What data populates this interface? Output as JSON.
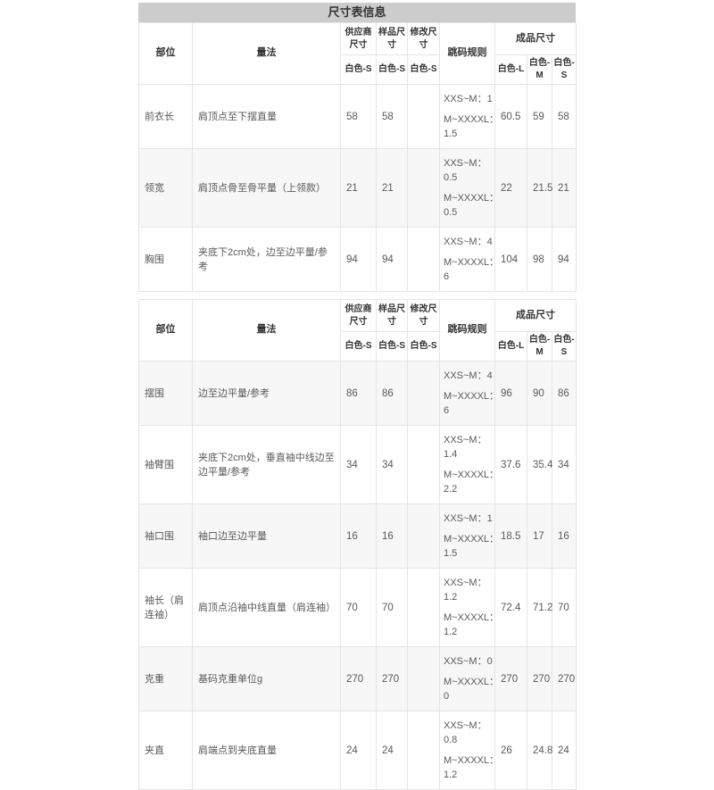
{
  "title": "尺寸表信息",
  "colors": {
    "title_bar_bg": "#cccccc",
    "stripe_bg": "#f7f7f7",
    "border": "#e5e5e5",
    "text": "#595959",
    "header_text": "#333333",
    "page_bg": "#ffffff"
  },
  "header": {
    "part": "部位",
    "method": "量法",
    "supplier": "供应商尺寸",
    "sample": "样品尺寸",
    "modify": "修改尺寸",
    "rule": "跳码规则",
    "finished": "成品尺寸",
    "supplier_sub": "白色-S",
    "sample_sub": "白色-S",
    "modify_sub": "白色-S",
    "finished_sub": [
      "白色-L",
      "白色-M",
      "白色-S"
    ]
  },
  "tables": [
    {
      "rows": [
        {
          "part": "前衣长",
          "method": "肩顶点至下摆直量",
          "supplier": "58",
          "sample": "58",
          "modify": "",
          "rules": [
            "XXS~M：1",
            "M~XXXXL：1.5"
          ],
          "finished": [
            "60.5",
            "59",
            "58"
          ]
        },
        {
          "part": "领宽",
          "method": "肩顶点骨至骨平量（上领款）",
          "supplier": "21",
          "sample": "21",
          "modify": "",
          "rules": [
            "XXS~M：0.5",
            "M~XXXXL：0.5"
          ],
          "finished": [
            "22",
            "21.5",
            "21"
          ]
        },
        {
          "part": "胸围",
          "method": "夹底下2cm处，边至边平量/参考",
          "supplier": "94",
          "sample": "94",
          "modify": "",
          "rules": [
            "XXS~M：4",
            "M~XXXXL：6"
          ],
          "finished": [
            "104",
            "98",
            "94"
          ]
        }
      ]
    },
    {
      "rows": [
        {
          "part": "摆围",
          "method": "边至边平量/参考",
          "supplier": "86",
          "sample": "86",
          "modify": "",
          "rules": [
            "XXS~M：4",
            "M~XXXXL：6"
          ],
          "finished": [
            "96",
            "90",
            "86"
          ]
        },
        {
          "part": "袖臂围",
          "method": "夹底下2cm处，垂直袖中线边至边平量/参考",
          "supplier": "34",
          "sample": "34",
          "modify": "",
          "rules": [
            "XXS~M：1.4",
            "M~XXXXL：2.2"
          ],
          "finished": [
            "37.6",
            "35.4",
            "34"
          ]
        },
        {
          "part": "袖口围",
          "method": "袖口边至边平量",
          "supplier": "16",
          "sample": "16",
          "modify": "",
          "rules": [
            "XXS~M：1",
            "M~XXXXL：1.5"
          ],
          "finished": [
            "18.5",
            "17",
            "16"
          ]
        },
        {
          "part": "袖长（肩连袖）",
          "method": "肩顶点沿袖中线直量（肩连袖）",
          "supplier": "70",
          "sample": "70",
          "modify": "",
          "rules": [
            "XXS~M：1.2",
            "M~XXXXL：1.2"
          ],
          "finished": [
            "72.4",
            "71.2",
            "70"
          ]
        },
        {
          "part": "克重",
          "method": "基码克重单位g",
          "supplier": "270",
          "sample": "270",
          "modify": "",
          "rules": [
            "XXS~M：0",
            "M~XXXXL：0"
          ],
          "finished": [
            "270",
            "270",
            "270"
          ]
        },
        {
          "part": "夹直",
          "method": "肩端点到夹底直量",
          "supplier": "24",
          "sample": "24",
          "modify": "",
          "rules": [
            "XXS~M：0.8",
            "M~XXXXL：1.2"
          ],
          "finished": [
            "26",
            "24.8",
            "24"
          ]
        }
      ]
    }
  ]
}
